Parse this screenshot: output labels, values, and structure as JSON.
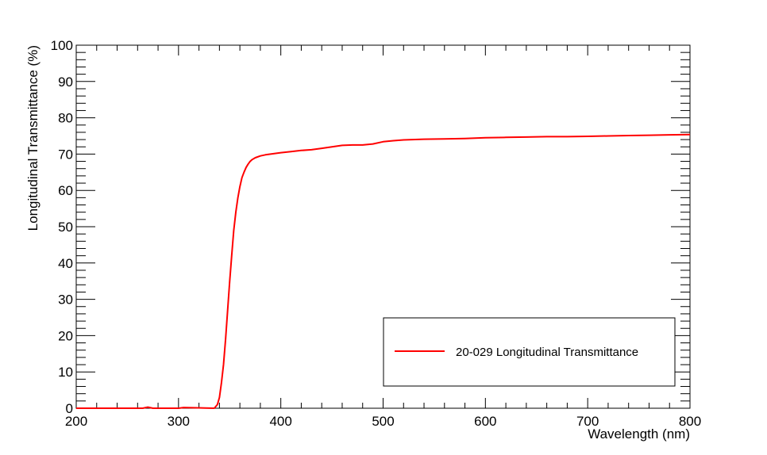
{
  "chart_data": {
    "type": "line",
    "title": "",
    "xlabel": "Wavelength (nm)",
    "ylabel": "Longitudinal Transmittance (%)",
    "xlim": [
      200,
      800
    ],
    "ylim": [
      0,
      100
    ],
    "x_ticks": [
      "200",
      "300",
      "400",
      "500",
      "600",
      "700",
      "800"
    ],
    "y_ticks": [
      "0",
      "10",
      "20",
      "30",
      "40",
      "50",
      "60",
      "70",
      "80",
      "90",
      "100"
    ],
    "grid": false,
    "legend_position": "bottom-right",
    "series": [
      {
        "name": "20-029 Longitudinal Transmittance",
        "color": "#ff0000",
        "x": [
          200,
          265,
          270,
          275,
          300,
          305,
          335,
          338,
          340,
          342,
          344,
          346,
          348,
          350,
          352,
          354,
          356,
          358,
          360,
          362,
          364,
          366,
          368,
          370,
          372,
          375,
          380,
          385,
          390,
          400,
          410,
          420,
          430,
          440,
          450,
          460,
          470,
          480,
          490,
          500,
          510,
          520,
          540,
          560,
          580,
          600,
          620,
          640,
          660,
          680,
          700,
          720,
          740,
          760,
          780,
          800
        ],
        "y": [
          0,
          0,
          0.3,
          0,
          0,
          0.2,
          0,
          1,
          3,
          7,
          12,
          19,
          27,
          35,
          42,
          49,
          54,
          58,
          61,
          63.5,
          65,
          66.3,
          67.2,
          68,
          68.5,
          69,
          69.5,
          69.8,
          70,
          70.4,
          70.7,
          71,
          71.2,
          71.6,
          72,
          72.4,
          72.5,
          72.5,
          72.8,
          73.4,
          73.7,
          73.9,
          74.1,
          74.2,
          74.3,
          74.5,
          74.6,
          74.7,
          74.8,
          74.8,
          74.9,
          75,
          75.1,
          75.2,
          75.3,
          75.4
        ]
      }
    ]
  }
}
